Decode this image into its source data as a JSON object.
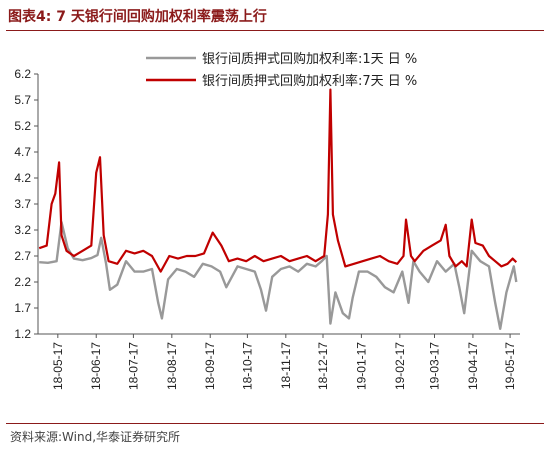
{
  "header": {
    "title": "图表4:  7 天银行间回购加权利率震荡上行"
  },
  "footer": {
    "source": "资料来源:Wind,华泰证券研究所"
  },
  "chart_data": {
    "type": "line",
    "title": "",
    "xlabel": "",
    "ylabel": "",
    "ylim": [
      1.2,
      6.2
    ],
    "yticks": [
      1.2,
      1.7,
      2.2,
      2.7,
      3.2,
      3.7,
      4.2,
      4.7,
      5.2,
      5.7,
      6.2
    ],
    "ytick_labels": [
      "1.2",
      "1.7",
      "2.2",
      "2.7",
      "3.2",
      "3.7",
      "4.2",
      "4.7",
      "5.2",
      "5.7",
      "6.2"
    ],
    "xlim": [
      "2018-05-01",
      "2019-05-25"
    ],
    "xticks": [
      "2018-05-17",
      "2018-06-17",
      "2018-07-17",
      "2018-08-17",
      "2018-09-17",
      "2018-10-17",
      "2018-11-17",
      "2018-12-17",
      "2019-01-17",
      "2019-02-17",
      "2019-03-17",
      "2019-04-17",
      "2019-05-17"
    ],
    "xtick_labels": [
      "18-05-17",
      "18-06-17",
      "18-07-17",
      "18-08-17",
      "18-09-17",
      "18-10-17",
      "18-11-17",
      "18-12-17",
      "19-01-17",
      "19-02-17",
      "19-03-17",
      "19-04-17",
      "19-05-17"
    ],
    "legend_position": "top-center",
    "grid": false,
    "series": [
      {
        "name": "银行间质押式回购加权利率:1天  日  %",
        "color": "#999999",
        "points": [
          [
            "2018-05-02",
            2.58
          ],
          [
            "2018-05-09",
            2.57
          ],
          [
            "2018-05-16",
            2.6
          ],
          [
            "2018-05-20",
            3.35
          ],
          [
            "2018-05-25",
            2.85
          ],
          [
            "2018-05-30",
            2.65
          ],
          [
            "2018-06-06",
            2.62
          ],
          [
            "2018-06-13",
            2.66
          ],
          [
            "2018-06-18",
            2.72
          ],
          [
            "2018-06-21",
            3.05
          ],
          [
            "2018-06-25",
            2.55
          ],
          [
            "2018-06-28",
            2.05
          ],
          [
            "2018-07-04",
            2.15
          ],
          [
            "2018-07-11",
            2.6
          ],
          [
            "2018-07-18",
            2.4
          ],
          [
            "2018-07-25",
            2.4
          ],
          [
            "2018-08-01",
            2.45
          ],
          [
            "2018-08-06",
            1.8
          ],
          [
            "2018-08-09",
            1.5
          ],
          [
            "2018-08-14",
            2.25
          ],
          [
            "2018-08-21",
            2.45
          ],
          [
            "2018-08-28",
            2.4
          ],
          [
            "2018-09-04",
            2.3
          ],
          [
            "2018-09-11",
            2.55
          ],
          [
            "2018-09-18",
            2.5
          ],
          [
            "2018-09-25",
            2.4
          ],
          [
            "2018-09-30",
            2.1
          ],
          [
            "2018-10-09",
            2.5
          ],
          [
            "2018-10-16",
            2.45
          ],
          [
            "2018-10-23",
            2.4
          ],
          [
            "2018-10-28",
            2.05
          ],
          [
            "2018-11-01",
            1.65
          ],
          [
            "2018-11-06",
            2.3
          ],
          [
            "2018-11-13",
            2.45
          ],
          [
            "2018-11-20",
            2.5
          ],
          [
            "2018-11-27",
            2.4
          ],
          [
            "2018-12-04",
            2.55
          ],
          [
            "2018-12-11",
            2.5
          ],
          [
            "2018-12-16",
            2.6
          ],
          [
            "2018-12-20",
            2.7
          ],
          [
            "2018-12-23",
            1.4
          ],
          [
            "2018-12-27",
            2.0
          ],
          [
            "2019-01-02",
            1.6
          ],
          [
            "2019-01-07",
            1.5
          ],
          [
            "2019-01-10",
            1.9
          ],
          [
            "2019-01-15",
            2.4
          ],
          [
            "2019-01-22",
            2.4
          ],
          [
            "2019-01-29",
            2.3
          ],
          [
            "2019-02-05",
            2.1
          ],
          [
            "2019-02-12",
            2.0
          ],
          [
            "2019-02-19",
            2.4
          ],
          [
            "2019-02-24",
            1.8
          ],
          [
            "2019-02-28",
            2.6
          ],
          [
            "2019-03-05",
            2.4
          ],
          [
            "2019-03-12",
            2.2
          ],
          [
            "2019-03-19",
            2.6
          ],
          [
            "2019-03-26",
            2.4
          ],
          [
            "2019-04-02",
            2.55
          ],
          [
            "2019-04-06",
            2.1
          ],
          [
            "2019-04-10",
            1.6
          ],
          [
            "2019-04-16",
            2.8
          ],
          [
            "2019-04-23",
            2.6
          ],
          [
            "2019-04-30",
            2.5
          ],
          [
            "2019-05-05",
            1.8
          ],
          [
            "2019-05-09",
            1.3
          ],
          [
            "2019-05-14",
            2.0
          ],
          [
            "2019-05-20",
            2.5
          ],
          [
            "2019-05-22",
            2.2
          ]
        ]
      },
      {
        "name": "银行间质押式回购加权利率:7天  日  %",
        "color": "#C00000",
        "points": [
          [
            "2018-05-02",
            2.85
          ],
          [
            "2018-05-08",
            2.9
          ],
          [
            "2018-05-12",
            3.7
          ],
          [
            "2018-05-15",
            3.9
          ],
          [
            "2018-05-18",
            4.5
          ],
          [
            "2018-05-20",
            3.1
          ],
          [
            "2018-05-24",
            2.8
          ],
          [
            "2018-05-30",
            2.7
          ],
          [
            "2018-06-06",
            2.8
          ],
          [
            "2018-06-13",
            2.9
          ],
          [
            "2018-06-17",
            4.3
          ],
          [
            "2018-06-20",
            4.6
          ],
          [
            "2018-06-23",
            3.1
          ],
          [
            "2018-06-27",
            2.6
          ],
          [
            "2018-07-04",
            2.55
          ],
          [
            "2018-07-11",
            2.8
          ],
          [
            "2018-07-18",
            2.75
          ],
          [
            "2018-07-25",
            2.8
          ],
          [
            "2018-08-01",
            2.7
          ],
          [
            "2018-08-08",
            2.4
          ],
          [
            "2018-08-15",
            2.7
          ],
          [
            "2018-08-22",
            2.65
          ],
          [
            "2018-08-29",
            2.7
          ],
          [
            "2018-09-05",
            2.7
          ],
          [
            "2018-09-12",
            2.75
          ],
          [
            "2018-09-19",
            3.15
          ],
          [
            "2018-09-26",
            2.9
          ],
          [
            "2018-10-02",
            2.6
          ],
          [
            "2018-10-09",
            2.65
          ],
          [
            "2018-10-16",
            2.6
          ],
          [
            "2018-10-23",
            2.7
          ],
          [
            "2018-10-30",
            2.6
          ],
          [
            "2018-11-06",
            2.65
          ],
          [
            "2018-11-13",
            2.7
          ],
          [
            "2018-11-20",
            2.6
          ],
          [
            "2018-11-27",
            2.65
          ],
          [
            "2018-12-04",
            2.7
          ],
          [
            "2018-12-11",
            2.6
          ],
          [
            "2018-12-18",
            2.7
          ],
          [
            "2018-12-21",
            3.5
          ],
          [
            "2018-12-23",
            5.9
          ],
          [
            "2018-12-25",
            3.5
          ],
          [
            "2018-12-29",
            3.0
          ],
          [
            "2019-01-04",
            2.5
          ],
          [
            "2019-01-11",
            2.55
          ],
          [
            "2019-01-18",
            2.6
          ],
          [
            "2019-01-25",
            2.65
          ],
          [
            "2019-02-01",
            2.7
          ],
          [
            "2019-02-08",
            2.6
          ],
          [
            "2019-02-15",
            2.55
          ],
          [
            "2019-02-20",
            2.7
          ],
          [
            "2019-02-22",
            3.4
          ],
          [
            "2019-02-26",
            2.7
          ],
          [
            "2019-03-01",
            2.6
          ],
          [
            "2019-03-08",
            2.8
          ],
          [
            "2019-03-15",
            2.9
          ],
          [
            "2019-03-22",
            3.0
          ],
          [
            "2019-03-26",
            3.3
          ],
          [
            "2019-03-29",
            2.7
          ],
          [
            "2019-04-03",
            2.5
          ],
          [
            "2019-04-08",
            2.6
          ],
          [
            "2019-04-12",
            2.5
          ],
          [
            "2019-04-16",
            3.4
          ],
          [
            "2019-04-19",
            2.95
          ],
          [
            "2019-04-25",
            2.9
          ],
          [
            "2019-04-30",
            2.7
          ],
          [
            "2019-05-05",
            2.6
          ],
          [
            "2019-05-10",
            2.5
          ],
          [
            "2019-05-15",
            2.55
          ],
          [
            "2019-05-19",
            2.65
          ],
          [
            "2019-05-22",
            2.58
          ]
        ]
      }
    ]
  }
}
